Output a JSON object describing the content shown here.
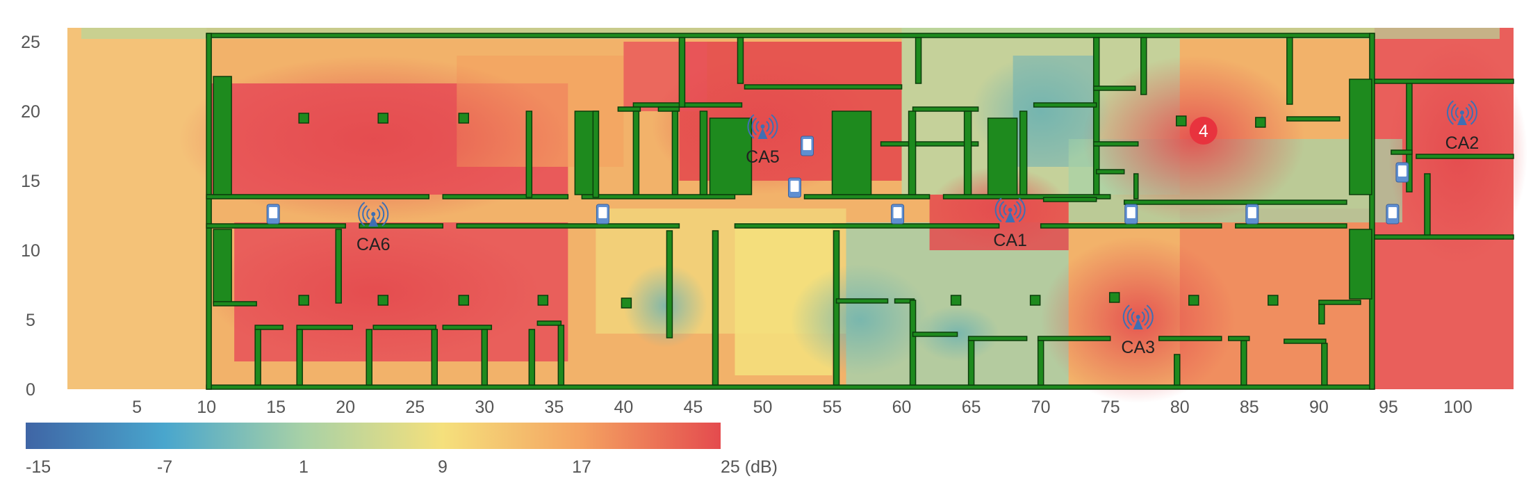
{
  "map": {
    "x_axis_ticks": [
      "5",
      "10",
      "15",
      "20",
      "25",
      "30",
      "35",
      "40",
      "45",
      "50",
      "55",
      "60",
      "65",
      "70",
      "75",
      "80",
      "85",
      "90",
      "95",
      "100"
    ],
    "y_axis_ticks": [
      "0",
      "5",
      "10",
      "15",
      "20",
      "25"
    ],
    "x_range": [
      0,
      104
    ],
    "y_range": [
      0,
      26
    ],
    "access_points": [
      {
        "label": "CA6",
        "x": 22.0,
        "y": 12.2
      },
      {
        "label": "CA5",
        "x": 50.0,
        "y": 18.5
      },
      {
        "label": "CA1",
        "x": 67.8,
        "y": 12.5
      },
      {
        "label": "CA3",
        "x": 77.0,
        "y": 4.8
      },
      {
        "label": "CA2",
        "x": 100.3,
        "y": 19.5
      }
    ],
    "clients": [
      {
        "x": 14.8,
        "y": 12.6
      },
      {
        "x": 38.5,
        "y": 12.6
      },
      {
        "x": 52.3,
        "y": 14.5
      },
      {
        "x": 53.2,
        "y": 17.5
      },
      {
        "x": 59.7,
        "y": 12.6
      },
      {
        "x": 76.5,
        "y": 12.6
      },
      {
        "x": 85.2,
        "y": 12.6
      },
      {
        "x": 95.3,
        "y": 12.6
      },
      {
        "x": 96.0,
        "y": 15.6
      }
    ],
    "marker": {
      "label": "4",
      "x": 81.7,
      "y": 18.6,
      "color": "#e8333e"
    }
  },
  "colorbar": {
    "tick_labels": [
      "-15",
      "-7",
      "1",
      "9",
      "17",
      "25 (dB)"
    ],
    "range": [
      -15,
      25
    ],
    "colors": [
      "#3f65a5",
      "#49a6cd",
      "#a8d1a6",
      "#f5e07c",
      "#f4a261",
      "#e44b4e"
    ]
  }
}
